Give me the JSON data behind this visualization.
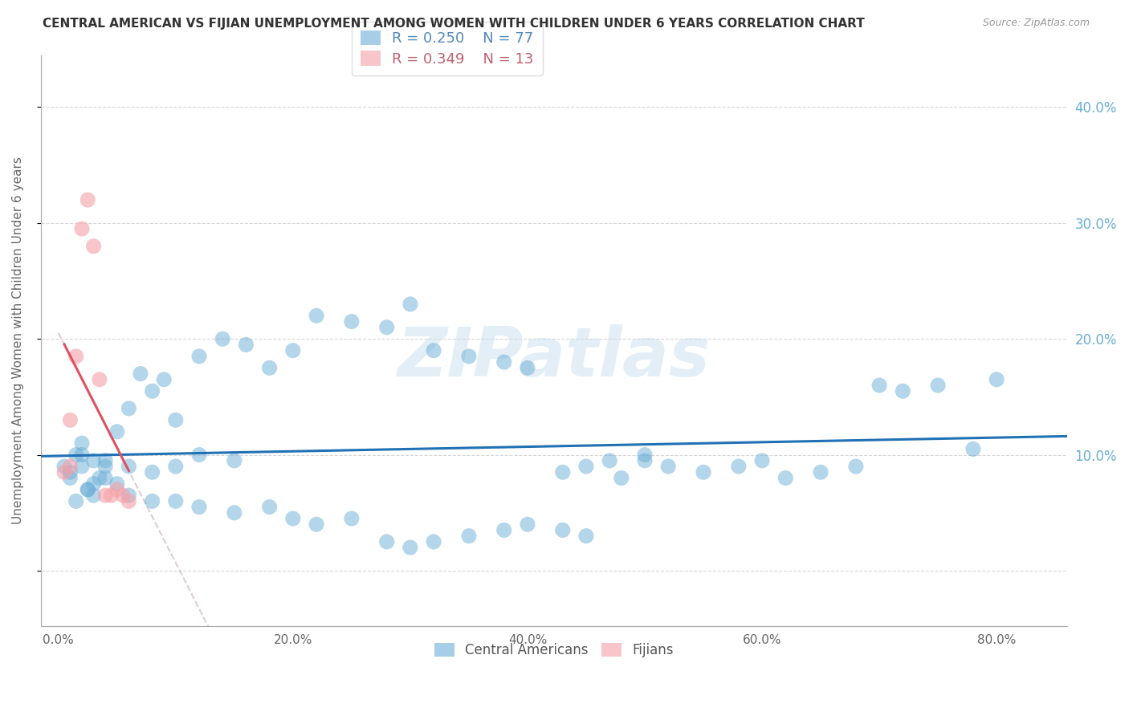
{
  "title": "CENTRAL AMERICAN VS FIJIAN UNEMPLOYMENT AMONG WOMEN WITH CHILDREN UNDER 6 YEARS CORRELATION CHART",
  "source": "Source: ZipAtlas.com",
  "ylabel": "Unemployment Among Women with Children Under 6 years",
  "xlabel_ticks": [
    "0.0%",
    "20.0%",
    "40.0%",
    "60.0%",
    "80.0%"
  ],
  "xlabel_tick_vals": [
    0.0,
    0.2,
    0.4,
    0.6,
    0.8
  ],
  "ylabel_tick_vals": [
    0.0,
    0.1,
    0.2,
    0.3,
    0.4
  ],
  "right_ytick_labels": [
    "40.0%",
    "30.0%",
    "20.0%",
    "10.0%"
  ],
  "right_ytick_vals": [
    0.4,
    0.3,
    0.2,
    0.1
  ],
  "xmin": -0.015,
  "xmax": 0.86,
  "ymin": -0.048,
  "ymax": 0.445,
  "blue_color": "#6baed6",
  "blue_line_color": "#2171b5",
  "pink_color": "#f4a0a8",
  "pink_line_color": "#e05060",
  "grid_color": "#cccccc",
  "title_color": "#333333",
  "right_tick_color": "#6baed6",
  "legend_R_blue": "0.250",
  "legend_N_blue": "77",
  "legend_R_pink": "0.349",
  "legend_N_pink": "13",
  "watermark": "ZIPatlas",
  "blue_scatter_x": [
    0.01,
    0.02,
    0.015,
    0.025,
    0.03,
    0.01,
    0.005,
    0.02,
    0.03,
    0.035,
    0.04,
    0.05,
    0.06,
    0.07,
    0.08,
    0.09,
    0.1,
    0.12,
    0.14,
    0.16,
    0.18,
    0.2,
    0.22,
    0.25,
    0.28,
    0.3,
    0.32,
    0.35,
    0.38,
    0.4,
    0.43,
    0.45,
    0.47,
    0.5,
    0.52,
    0.55,
    0.58,
    0.6,
    0.62,
    0.65,
    0.68,
    0.7,
    0.72,
    0.75,
    0.78,
    0.8,
    0.015,
    0.025,
    0.03,
    0.04,
    0.05,
    0.06,
    0.08,
    0.1,
    0.12,
    0.15,
    0.18,
    0.2,
    0.22,
    0.25,
    0.28,
    0.3,
    0.32,
    0.35,
    0.38,
    0.4,
    0.43,
    0.45,
    0.48,
    0.5,
    0.02,
    0.04,
    0.06,
    0.08,
    0.1,
    0.12,
    0.15
  ],
  "blue_scatter_y": [
    0.08,
    0.09,
    0.1,
    0.07,
    0.095,
    0.085,
    0.09,
    0.11,
    0.075,
    0.08,
    0.09,
    0.12,
    0.14,
    0.17,
    0.155,
    0.165,
    0.13,
    0.185,
    0.2,
    0.195,
    0.175,
    0.19,
    0.22,
    0.215,
    0.21,
    0.23,
    0.19,
    0.185,
    0.18,
    0.175,
    0.085,
    0.09,
    0.095,
    0.1,
    0.09,
    0.085,
    0.09,
    0.095,
    0.08,
    0.085,
    0.09,
    0.16,
    0.155,
    0.16,
    0.105,
    0.165,
    0.06,
    0.07,
    0.065,
    0.08,
    0.075,
    0.065,
    0.06,
    0.06,
    0.055,
    0.05,
    0.055,
    0.045,
    0.04,
    0.045,
    0.025,
    0.02,
    0.025,
    0.03,
    0.035,
    0.04,
    0.035,
    0.03,
    0.08,
    0.095,
    0.1,
    0.095,
    0.09,
    0.085,
    0.09,
    0.1,
    0.095
  ],
  "pink_scatter_x": [
    0.005,
    0.01,
    0.01,
    0.015,
    0.02,
    0.025,
    0.03,
    0.035,
    0.04,
    0.045,
    0.05,
    0.055,
    0.06
  ],
  "pink_scatter_y": [
    0.085,
    0.13,
    0.09,
    0.185,
    0.295,
    0.32,
    0.28,
    0.165,
    0.065,
    0.065,
    0.07,
    0.065,
    0.06
  ]
}
